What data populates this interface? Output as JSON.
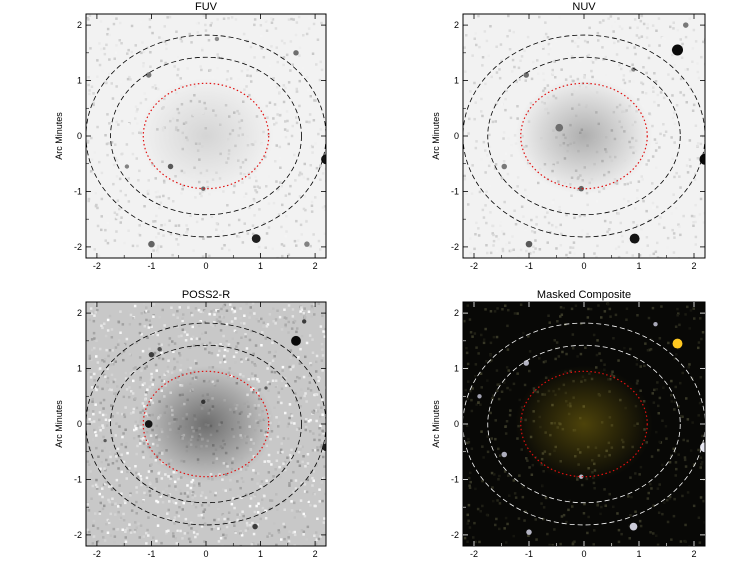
{
  "chart_data": [
    {
      "type": "image",
      "title": "FUV",
      "ylabel": "Arc Minutes",
      "xlim": [
        -2.2,
        2.2
      ],
      "ylim": [
        -2.2,
        2.2
      ],
      "xticks": [
        "-2",
        "-1",
        "0",
        "1",
        "2"
      ],
      "yticks": [
        "2",
        "1",
        "0",
        "-1",
        "-2"
      ],
      "tick_values": [
        -2,
        -1,
        0,
        1,
        2
      ],
      "background": "light",
      "galaxy_glow": 0.15,
      "colors": {
        "ellipse_inner": "#e01010",
        "ellipse_outer": "#000000"
      },
      "ellipses": [
        {
          "role": "aperture",
          "style": "dotted",
          "a": 1.15,
          "b": 0.95
        },
        {
          "role": "sky-inner",
          "style": "dashed",
          "a": 1.75,
          "b": 1.42
        },
        {
          "role": "sky-outer",
          "style": "dashed",
          "a": 2.2,
          "b": 1.82
        }
      ],
      "sources": [
        {
          "x": 2.2,
          "y": -0.42,
          "r": 0.09,
          "strength": 0.9
        },
        {
          "x": 0.92,
          "y": -1.85,
          "r": 0.08,
          "strength": 0.85
        },
        {
          "x": -0.65,
          "y": -0.55,
          "r": 0.05,
          "strength": 0.55
        },
        {
          "x": -1.0,
          "y": -1.95,
          "r": 0.06,
          "strength": 0.5
        },
        {
          "x": 1.65,
          "y": 1.5,
          "r": 0.05,
          "strength": 0.45
        },
        {
          "x": -1.05,
          "y": 1.1,
          "r": 0.05,
          "strength": 0.4
        },
        {
          "x": -0.05,
          "y": -0.95,
          "r": 0.04,
          "strength": 0.45
        },
        {
          "x": -1.45,
          "y": -0.55,
          "r": 0.04,
          "strength": 0.35
        },
        {
          "x": 0.2,
          "y": 1.75,
          "r": 0.04,
          "strength": 0.3
        },
        {
          "x": 1.85,
          "y": -1.95,
          "r": 0.05,
          "strength": 0.35
        }
      ]
    },
    {
      "type": "image",
      "title": "NUV",
      "ylabel": "Arc Minutes",
      "xlim": [
        -2.2,
        2.2
      ],
      "ylim": [
        -2.2,
        2.2
      ],
      "xticks": [
        "-2",
        "-1",
        "0",
        "1",
        "2"
      ],
      "yticks": [
        "2",
        "1",
        "0",
        "-1",
        "-2"
      ],
      "tick_values": [
        -2,
        -1,
        0,
        1,
        2
      ],
      "background": "light",
      "galaxy_glow": 0.35,
      "colors": {
        "ellipse_inner": "#e01010",
        "ellipse_outer": "#000000"
      },
      "ellipses": [
        {
          "role": "aperture",
          "style": "dotted",
          "a": 1.15,
          "b": 0.95
        },
        {
          "role": "sky-inner",
          "style": "dashed",
          "a": 1.75,
          "b": 1.42
        },
        {
          "role": "sky-outer",
          "style": "dashed",
          "a": 2.2,
          "b": 1.82
        }
      ],
      "sources": [
        {
          "x": 2.2,
          "y": -0.42,
          "r": 0.1,
          "strength": 0.95
        },
        {
          "x": 1.7,
          "y": 1.55,
          "r": 0.1,
          "strength": 0.95
        },
        {
          "x": 0.92,
          "y": -1.85,
          "r": 0.09,
          "strength": 0.9
        },
        {
          "x": -0.45,
          "y": 0.15,
          "r": 0.07,
          "strength": 0.45
        },
        {
          "x": -1.0,
          "y": -1.95,
          "r": 0.06,
          "strength": 0.55
        },
        {
          "x": -1.05,
          "y": 1.1,
          "r": 0.05,
          "strength": 0.45
        },
        {
          "x": -0.05,
          "y": -0.95,
          "r": 0.05,
          "strength": 0.5
        },
        {
          "x": -1.45,
          "y": -0.55,
          "r": 0.05,
          "strength": 0.4
        },
        {
          "x": 1.85,
          "y": 2.0,
          "r": 0.05,
          "strength": 0.4
        },
        {
          "x": 0.9,
          "y": 1.2,
          "r": 0.04,
          "strength": 0.35
        }
      ]
    },
    {
      "type": "image",
      "title": "POSS2-R",
      "ylabel": "Arc Minutes",
      "xlim": [
        -2.2,
        2.2
      ],
      "ylim": [
        -2.2,
        2.2
      ],
      "xticks": [
        "-2",
        "-1",
        "0",
        "1",
        "2"
      ],
      "yticks": [
        "2",
        "1",
        "0",
        "-1",
        "-2"
      ],
      "tick_values": [
        -2,
        -1,
        0,
        1,
        2
      ],
      "background": "grainy",
      "galaxy_glow": 0.6,
      "colors": {
        "ellipse_inner": "#e01010",
        "ellipse_outer": "#000000"
      },
      "ellipses": [
        {
          "role": "aperture",
          "style": "dotted",
          "a": 1.15,
          "b": 0.95
        },
        {
          "role": "sky-inner",
          "style": "dashed",
          "a": 1.75,
          "b": 1.42
        },
        {
          "role": "sky-outer",
          "style": "dashed",
          "a": 2.2,
          "b": 1.82
        }
      ],
      "sources": [
        {
          "x": 1.65,
          "y": 1.5,
          "r": 0.09,
          "strength": 0.95
        },
        {
          "x": -1.05,
          "y": 0.0,
          "r": 0.07,
          "strength": 0.9
        },
        {
          "x": 2.2,
          "y": -0.42,
          "r": 0.07,
          "strength": 0.85
        },
        {
          "x": -1.0,
          "y": 1.25,
          "r": 0.05,
          "strength": 0.7
        },
        {
          "x": -0.05,
          "y": 0.4,
          "r": 0.04,
          "strength": 0.75
        },
        {
          "x": 1.8,
          "y": 1.85,
          "r": 0.04,
          "strength": 0.7
        },
        {
          "x": 0.9,
          "y": -1.85,
          "r": 0.05,
          "strength": 0.7
        },
        {
          "x": -0.85,
          "y": 1.35,
          "r": 0.04,
          "strength": 0.6
        },
        {
          "x": -1.85,
          "y": -0.3,
          "r": 0.03,
          "strength": 0.55
        },
        {
          "x": 1.1,
          "y": 0.65,
          "r": 0.03,
          "strength": 0.55
        }
      ]
    },
    {
      "type": "image",
      "title": "Masked Composite",
      "ylabel": "Arc Minutes",
      "xlim": [
        -2.2,
        2.2
      ],
      "ylim": [
        -2.2,
        2.2
      ],
      "xticks": [
        "-2",
        "-1",
        "0",
        "1",
        "2"
      ],
      "yticks": [
        "2",
        "1",
        "0",
        "-1",
        "-2"
      ],
      "tick_values": [
        -2,
        -1,
        0,
        1,
        2
      ],
      "background": "dark",
      "galaxy_glow": 0.45,
      "colors": {
        "ellipse_inner": "#e01010",
        "ellipse_outer": "#ffffff",
        "glow": "#a08a10",
        "bright_source": "#ffc820"
      },
      "ellipses": [
        {
          "role": "aperture",
          "style": "dotted",
          "a": 1.15,
          "b": 0.95
        },
        {
          "role": "sky-inner",
          "style": "dashed",
          "a": 1.75,
          "b": 1.42
        },
        {
          "role": "sky-outer",
          "style": "dashed",
          "a": 2.2,
          "b": 1.82
        }
      ],
      "sources": [
        {
          "x": 1.7,
          "y": 1.45,
          "r": 0.09,
          "strength": 0.95
        },
        {
          "x": 2.2,
          "y": -0.42,
          "r": 0.09,
          "strength": 0.9
        },
        {
          "x": 0.9,
          "y": -1.85,
          "r": 0.07,
          "strength": 0.7
        },
        {
          "x": -1.0,
          "y": -1.95,
          "r": 0.05,
          "strength": 0.5
        },
        {
          "x": -1.05,
          "y": 1.1,
          "r": 0.05,
          "strength": 0.5
        },
        {
          "x": -0.05,
          "y": -0.95,
          "r": 0.04,
          "strength": 0.55
        },
        {
          "x": -1.45,
          "y": -0.55,
          "r": 0.05,
          "strength": 0.45
        },
        {
          "x": 1.3,
          "y": 1.8,
          "r": 0.04,
          "strength": 0.4
        },
        {
          "x": -1.9,
          "y": 0.5,
          "r": 0.04,
          "strength": 0.35
        }
      ]
    }
  ]
}
